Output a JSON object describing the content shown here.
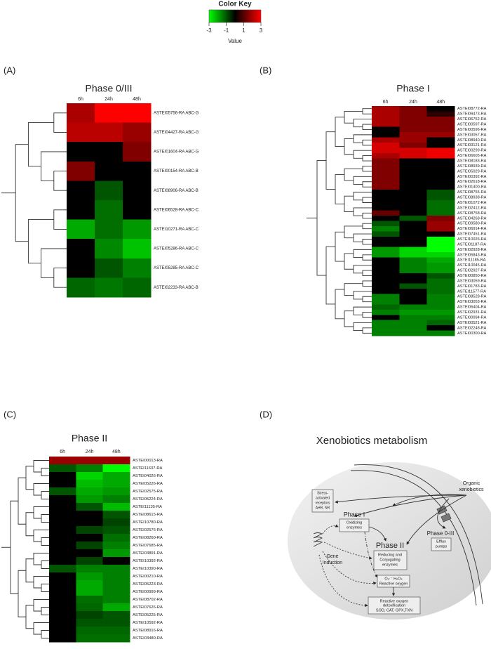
{
  "panel_labels": [
    "(A)",
    "(B)",
    "(C)",
    "(D)"
  ],
  "color_key": {
    "title": "Color Key",
    "xlabel": "Value",
    "xlim": [
      -3,
      3
    ],
    "xticks": [
      -3,
      -1,
      1,
      3
    ],
    "colors": [
      "#00ff00",
      "#000000",
      "#ff0000"
    ]
  },
  "chart_data": [
    {
      "type": "heatmap",
      "title": "Phase 0/III",
      "columns": [
        "6h",
        "24h",
        "48h"
      ],
      "rows": [
        "ASTEI05756-RA ABC-G",
        "ASTEI04427-RA ABC-G",
        "ASTEI01604-RA ABC-G",
        "ASTEI00154-RA ABC-B",
        "ASTEI08906-RA ABC-B",
        "ASTEI06528-RA ABC-C",
        "ASTEI10271-RA ABC-C",
        "ASTEI05286-RA ABC-C",
        "ASTEI05285-RA ABC-C",
        "ASTEI02233-RA ABC-B"
      ],
      "values": [
        [
          2,
          3,
          3
        ],
        [
          2.2,
          2.2,
          1.8
        ],
        [
          0,
          0,
          1.5
        ],
        [
          1.5,
          0,
          0
        ],
        [
          0,
          -1,
          0
        ],
        [
          0,
          -1.3,
          0
        ],
        [
          -2,
          -1.3,
          -1.8
        ],
        [
          0,
          -1.6,
          -2.3
        ],
        [
          0,
          -1,
          -1.5
        ],
        [
          -1.2,
          -1.4,
          -1.2
        ]
      ]
    },
    {
      "type": "heatmap",
      "title": "Phase I",
      "columns": [
        "6h",
        "24h",
        "48h"
      ],
      "rows": [
        "ASTEI08772-RA",
        "ASTEI09473-RA",
        "ASTEI06752-RA",
        "ASTEI00597-RA",
        "ASTEI00596-RA",
        "ASTEI03057-RA",
        "ASTEI08940-RA",
        "ASTEI03121-RA",
        "ASTEI00299-RA",
        "ASTEI06605-RA",
        "ASTEI08183-RA",
        "ASTEI08939-RA",
        "ASTEI05029-RA",
        "ASTEI00392-RA",
        "ASTEI02618-RA",
        "ASTEI01400-RA",
        "ASTEI08755-RA",
        "ASTEI08938-RA",
        "ASTEI01072-RA",
        "ASTEI02412-RA",
        "ASTEI08758-RA",
        "ASTEI04268-RA",
        "ASTEI09580-RA",
        "ASTEI06914-RA",
        "ASTEI07451-RA",
        "ASTEI10026-RA",
        "ASTEI01187-RA",
        "ASTEI02928-RA",
        "ASTEI05843-RA",
        "ASTEI11185-RA",
        "ASTEI10045-RA",
        "ASTEI02927-RA",
        "ASTEI00850-RA",
        "ASTEI03059-RA",
        "ASTEI01783-RA",
        "ASTEI11577-RA",
        "ASTEI08528-RA",
        "ASTEI03053-RA",
        "ASTEI06404-RA",
        "ASTEI02931-RA",
        "ASTEI00094-RA",
        "ASTEI00521-RA",
        "ASTEI02248-RA",
        "ASTEI00300-RA"
      ],
      "values": [
        [
          2,
          1.5,
          0
        ],
        [
          2,
          1.5,
          0.5
        ],
        [
          2,
          1.5,
          1.5
        ],
        [
          2,
          1.5,
          1.5
        ],
        [
          0,
          1.5,
          1.5
        ],
        [
          0,
          1.8,
          1.8
        ],
        [
          2,
          1.8,
          0
        ],
        [
          2.5,
          1.5,
          0
        ],
        [
          2.5,
          2.5,
          2.8
        ],
        [
          2,
          2.5,
          2.8
        ],
        [
          1.5,
          0,
          0
        ],
        [
          1.5,
          0,
          0
        ],
        [
          1.5,
          0,
          0
        ],
        [
          1.5,
          0,
          0
        ],
        [
          1.5,
          0,
          0
        ],
        [
          1.5,
          0,
          0
        ],
        [
          0,
          0,
          -1
        ],
        [
          0,
          0,
          -1
        ],
        [
          0,
          0,
          -1.3
        ],
        [
          0,
          0,
          -1.3
        ],
        [
          1.2,
          0,
          -1.3
        ],
        [
          0,
          -1,
          1.5
        ],
        [
          -1,
          0,
          1.8
        ],
        [
          -1.5,
          0,
          1.8
        ],
        [
          -1,
          0,
          0
        ],
        [
          0,
          0,
          -3
        ],
        [
          0,
          0,
          -3
        ],
        [
          -1.8,
          -2.5,
          -3
        ],
        [
          -1.8,
          -2.5,
          -2.5
        ],
        [
          0,
          -1.5,
          -2
        ],
        [
          0,
          -1.5,
          -1.8
        ],
        [
          0,
          -1.5,
          -1.8
        ],
        [
          0,
          0,
          -1
        ],
        [
          0,
          0,
          -1.3
        ],
        [
          0,
          -1,
          -1.3
        ],
        [
          0,
          0,
          -1.3
        ],
        [
          -1.5,
          0,
          -1.5
        ],
        [
          -1.5,
          0,
          -1.5
        ],
        [
          -1.2,
          -1.5,
          -1.5
        ],
        [
          -1.5,
          -1.8,
          -1.8
        ],
        [
          0,
          -1.5,
          -1.5
        ],
        [
          -1.5,
          -1.5,
          -1.2
        ],
        [
          -1.5,
          -1.5,
          0
        ],
        [
          -1.5,
          -1.5,
          -1.5
        ]
      ]
    },
    {
      "type": "heatmap",
      "title": "Phase II",
      "columns": [
        "6h",
        "24h",
        "48h"
      ],
      "rows": [
        "ASTEI00013-RA",
        "ASTEI11637-RA",
        "ASTEI04026-RA",
        "ASTEI05226-RA",
        "ASTEI02575-RA",
        "ASTEI05224-RA",
        "ASTEI11135-RA",
        "ASTEI08615-RA",
        "ASTEI10780-RA",
        "ASTEI02576-RA",
        "ASTEI08260-RA",
        "ASTEI07685-RA",
        "ASTEI03891-RA",
        "ASTEI10392-RA",
        "ASTEI10390-RA",
        "ASTEI00210-RA",
        "ASTEI05223-RA",
        "ASTEI00999-RA",
        "ASTEI08702-RA",
        "ASTEI07626-RA",
        "ASTEI05225-RA",
        "ASTEI10592-RA",
        "ASTEI08916-RA",
        "ASTEI03480-RA"
      ],
      "values": [
        [
          1.8,
          1.8,
          1.8
        ],
        [
          -1,
          -1.5,
          -3
        ],
        [
          0,
          -2.5,
          -2
        ],
        [
          0,
          -2.2,
          -2
        ],
        [
          -1,
          -2,
          -1.8
        ],
        [
          0,
          -1.8,
          -1.5
        ],
        [
          0,
          -1,
          -2.2
        ],
        [
          0,
          0,
          -1
        ],
        [
          0,
          0,
          -0.8
        ],
        [
          0,
          -0.8,
          -1
        ],
        [
          0,
          0,
          -1.3
        ],
        [
          0,
          -0.8,
          -1.5
        ],
        [
          0,
          0,
          -1.8
        ],
        [
          0,
          -0.8,
          0
        ],
        [
          -1,
          -1.5,
          -1.5
        ],
        [
          0,
          -1.8,
          -1.5
        ],
        [
          0,
          -2,
          -1.5
        ],
        [
          0,
          -2,
          -1.5
        ],
        [
          0,
          -1.3,
          -1.5
        ],
        [
          0,
          -1.2,
          -2
        ],
        [
          0,
          -0.8,
          -1
        ],
        [
          0,
          -1,
          -1
        ],
        [
          0,
          -1.2,
          -1.2
        ],
        [
          0,
          -1.3,
          -1.3
        ]
      ]
    }
  ],
  "diagram": {
    "title": "Xenobiotics metabolism",
    "organic": [
      "Organic",
      "xenobiotics"
    ],
    "receptors": [
      "Stress-",
      "activated",
      "receptors",
      "AHR, NR"
    ],
    "phase1": "Phase I",
    "phase1_box": [
      "Oxidizing",
      "enzymes"
    ],
    "phase2": "Phase II",
    "phase2_box": [
      "Reducing and",
      "Conjugating",
      "enzymes"
    ],
    "phase03": "Phase 0-III",
    "phase03_box": [
      "Efflux",
      "pumps"
    ],
    "induction": [
      "Gene",
      "Induction"
    ],
    "ros": [
      "O₂·⁻ H₂O₂",
      "Reactive oxygen"
    ],
    "detox": [
      "Reactive oxygen",
      "detoxification",
      "SOD, CAT, GPX,TXN"
    ]
  }
}
